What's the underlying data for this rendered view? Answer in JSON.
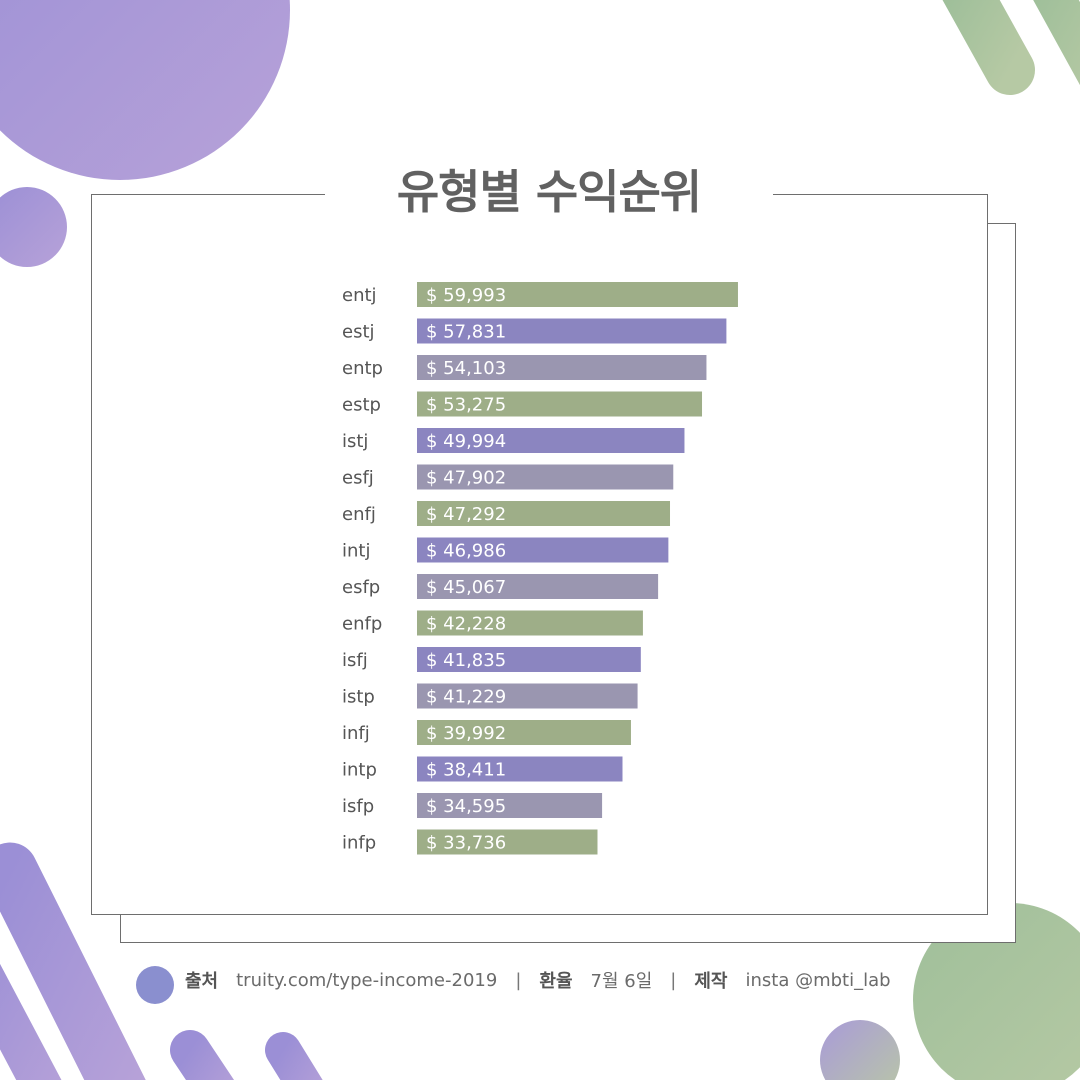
{
  "title": "유형별 수익순위",
  "colors": {
    "green": "#9eae88",
    "purple": "#8b85c0",
    "gray": "#9a96b0",
    "frame": "#6e6e6e",
    "title": "#616161"
  },
  "chart_data": {
    "type": "bar",
    "orientation": "horizontal",
    "categories": [
      "entj",
      "estj",
      "entp",
      "estp",
      "istj",
      "esfj",
      "enfj",
      "intj",
      "esfp",
      "enfp",
      "isfj",
      "istp",
      "infj",
      "intp",
      "isfp",
      "infp"
    ],
    "values": [
      59993,
      57831,
      54103,
      53275,
      49994,
      47902,
      47292,
      46986,
      45067,
      42228,
      41835,
      41229,
      39992,
      38411,
      34595,
      33736
    ],
    "value_labels": [
      "$ 59,993",
      "$ 57,831",
      "$ 54,103",
      "$ 53,275",
      "$ 49,994",
      "$ 47,902",
      "$ 47,292",
      "$ 46,986",
      "$ 45,067",
      "$ 42,228",
      "$ 41,835",
      "$ 41,229",
      "$ 39,992",
      "$ 38,411",
      "$ 34,595",
      "$ 33,736"
    ],
    "bar_colors": [
      "green",
      "purple",
      "gray",
      "green",
      "purple",
      "gray",
      "green",
      "purple",
      "gray",
      "green",
      "purple",
      "gray",
      "green",
      "purple",
      "gray",
      "green"
    ],
    "xlim": [
      0,
      60000
    ],
    "grid": false,
    "legend": "none"
  },
  "footer": {
    "source_label": "출처",
    "source_value": "truity.com/type-income-2019",
    "sep": "|",
    "rate_label": "환율",
    "rate_value": "7월 6일",
    "maker_label": "제작",
    "maker_value": "insta @mbti_lab"
  }
}
